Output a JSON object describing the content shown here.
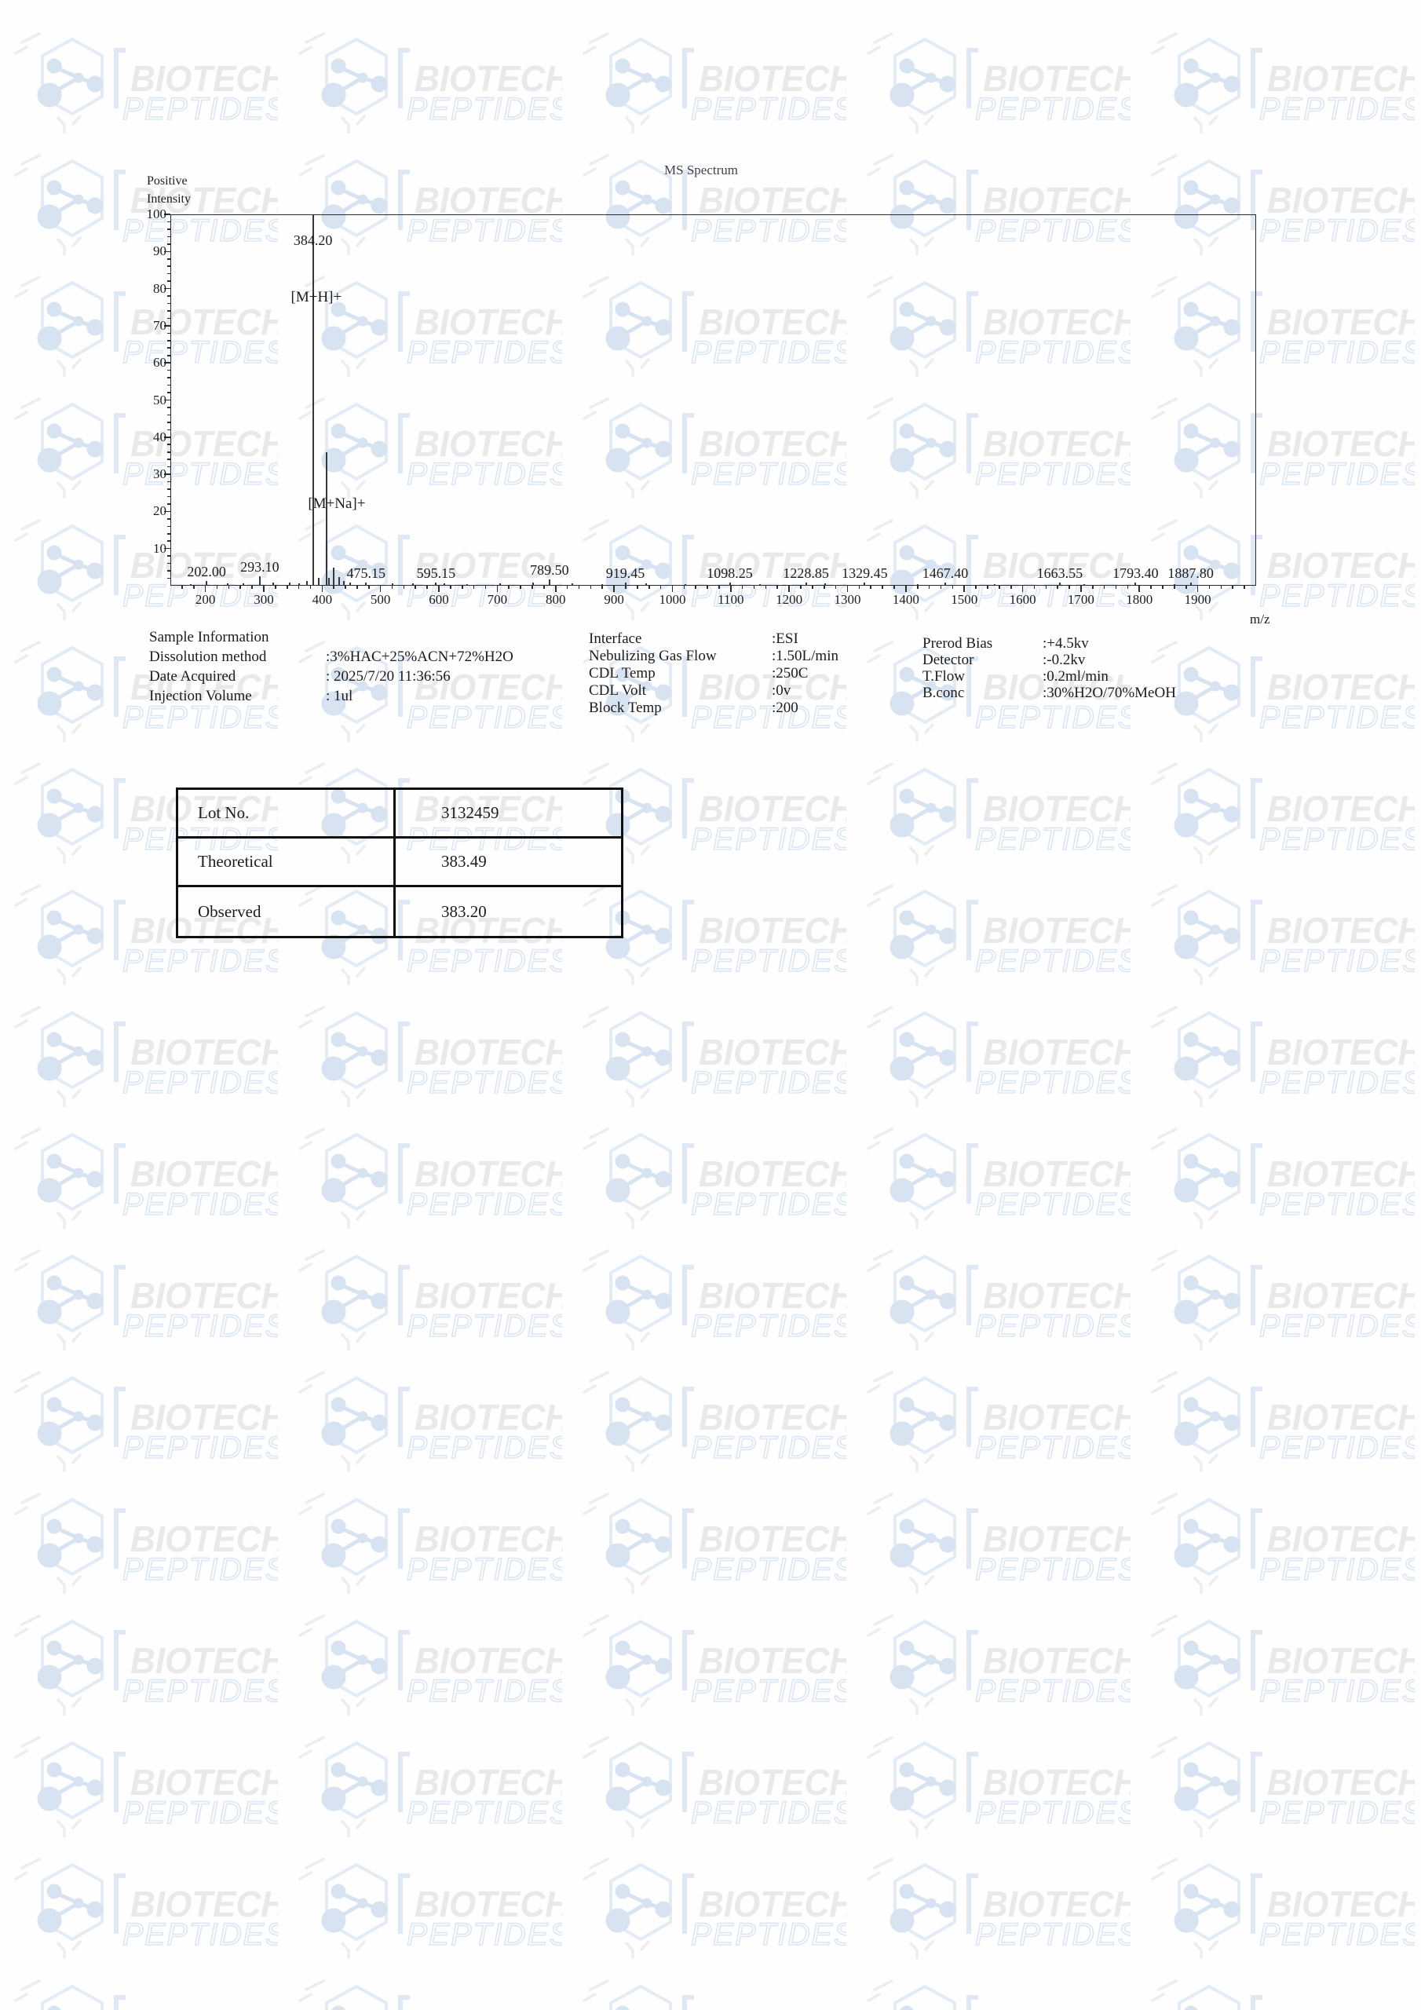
{
  "watermark": {
    "line1": "BIOTECH",
    "line2": "PEPTIDES"
  },
  "chart_data": {
    "type": "line",
    "subtype": "mass-spectrum-stick-plot",
    "title": "MS Spectrum",
    "xlabel": "m/z",
    "ylabel_lines": [
      "Positive",
      "Intensity"
    ],
    "xlim": [
      140,
      2000
    ],
    "ylim": [
      0,
      100
    ],
    "grid": false,
    "x_ticks": [
      200,
      300,
      400,
      500,
      600,
      700,
      800,
      900,
      1000,
      1100,
      1200,
      1300,
      1400,
      1500,
      1600,
      1700,
      1800,
      1900
    ],
    "y_ticks": [
      10,
      20,
      30,
      40,
      50,
      60,
      70,
      80,
      90,
      100
    ],
    "peaks": [
      {
        "mz": 202.0,
        "intensity": 1.3,
        "label": "202.00"
      },
      {
        "mz": 293.1,
        "intensity": 2.6,
        "label": "293.10"
      },
      {
        "mz": 384.2,
        "intensity": 100,
        "label": "384.20",
        "label_y": 93
      },
      {
        "mz": 407.1,
        "intensity": 36
      },
      {
        "mz": 475.15,
        "intensity": 0.9,
        "label": "475.15"
      },
      {
        "mz": 595.15,
        "intensity": 0.9,
        "label": "595.15"
      },
      {
        "mz": 789.5,
        "intensity": 1.7,
        "label": "789.50"
      },
      {
        "mz": 919.45,
        "intensity": 0.9,
        "label": "919.45"
      },
      {
        "mz": 1098.25,
        "intensity": 0.9,
        "label": "1098.25"
      },
      {
        "mz": 1228.85,
        "intensity": 0.9,
        "label": "1228.85"
      },
      {
        "mz": 1329.45,
        "intensity": 0.9,
        "label": "1329.45"
      },
      {
        "mz": 1467.4,
        "intensity": 0.9,
        "label": "1467.40"
      },
      {
        "mz": 1663.55,
        "intensity": 0.9,
        "label": "1663.55"
      },
      {
        "mz": 1793.4,
        "intensity": 0.9,
        "label": "1793.40"
      },
      {
        "mz": 1887.8,
        "intensity": 0.9,
        "label": "1887.80"
      }
    ],
    "noise_peaks": [
      {
        "mz": 175,
        "intensity": 0.5
      },
      {
        "mz": 238,
        "intensity": 0.7
      },
      {
        "mz": 265,
        "intensity": 0.6
      },
      {
        "mz": 316,
        "intensity": 0.8
      },
      {
        "mz": 344,
        "intensity": 0.9
      },
      {
        "mz": 360,
        "intensity": 0.7
      },
      {
        "mz": 374,
        "intensity": 1.3
      },
      {
        "mz": 394,
        "intensity": 2.1
      },
      {
        "mz": 412,
        "intensity": 2.2
      },
      {
        "mz": 420,
        "intensity": 4.8
      },
      {
        "mz": 429,
        "intensity": 2.4
      },
      {
        "mz": 437,
        "intensity": 1.2
      },
      {
        "mz": 448,
        "intensity": 0.9
      },
      {
        "mz": 520,
        "intensity": 0.6
      },
      {
        "mz": 556,
        "intensity": 0.7
      },
      {
        "mz": 610,
        "intensity": 0.6
      },
      {
        "mz": 648,
        "intensity": 0.5
      },
      {
        "mz": 705,
        "intensity": 0.7
      },
      {
        "mz": 762,
        "intensity": 0.9
      },
      {
        "mz": 828,
        "intensity": 0.6
      },
      {
        "mz": 880,
        "intensity": 0.5
      },
      {
        "mz": 955,
        "intensity": 0.6
      },
      {
        "mz": 1022,
        "intensity": 0.5
      },
      {
        "mz": 1150,
        "intensity": 0.5
      },
      {
        "mz": 1262,
        "intensity": 0.6
      },
      {
        "mz": 1420,
        "intensity": 0.5
      },
      {
        "mz": 1552,
        "intensity": 0.5
      },
      {
        "mz": 1705,
        "intensity": 0.4
      },
      {
        "mz": 1860,
        "intensity": 0.4
      }
    ],
    "annotations": [
      {
        "text": "[M+H]+",
        "mz": 390,
        "y": 77.5
      },
      {
        "text": "[M+Na]+",
        "mz": 425,
        "y": 22
      }
    ]
  },
  "info": {
    "col1": {
      "header": "Sample Information",
      "rows": [
        {
          "label": "Dissolution method",
          "value": ":3%HAC+25%ACN+72%H2O"
        },
        {
          "label": "Date Acquired",
          "value": ": 2025/7/20 11:36:56"
        },
        {
          "label": "Injection Volume",
          "value": ": 1ul"
        }
      ]
    },
    "col2": {
      "rows": [
        {
          "label": "Interface",
          "value": ":ESI"
        },
        {
          "label": "Nebulizing Gas Flow",
          "value": ":1.50L/min"
        },
        {
          "label": "CDL Temp",
          "value": ":250C"
        },
        {
          "label": "CDL Volt",
          "value": ":0v"
        },
        {
          "label": "Block Temp",
          "value": ":200"
        }
      ]
    },
    "col3": {
      "rows": [
        {
          "label": "Prerod Bias",
          "value": ":+4.5kv"
        },
        {
          "label": "Detector",
          "value": ":-0.2kv"
        },
        {
          "label": "T.Flow",
          "value": ":0.2ml/min"
        },
        {
          "label": "B.conc",
          "value": ":30%H2O/70%MeOH"
        }
      ]
    }
  },
  "table": {
    "rows": [
      {
        "label": "Lot No.",
        "value": "3132459"
      },
      {
        "label": "Theoretical",
        "value": "383.49"
      },
      {
        "label": "Observed",
        "value": "383.20"
      }
    ]
  },
  "colors": {
    "axis": "#2c2c2e",
    "peak_line": "#37373b",
    "title_text": "#41414c",
    "body_text": "#1c1c1c",
    "table_border": "#111111",
    "wm_gray": "#e9e9eb",
    "wm_blue_stroke": "#dce6f2",
    "wm_hex_stroke": "#e3ebf5",
    "wm_molecule": "#d8e3f2"
  }
}
